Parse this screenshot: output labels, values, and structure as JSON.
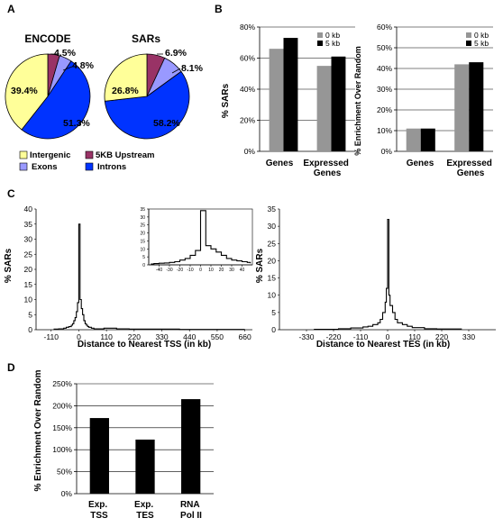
{
  "panel_labels": {
    "a": "A",
    "b": "B",
    "c": "C",
    "d": "D"
  },
  "colors": {
    "intergenic": "#ffff99",
    "upstream": "#993366",
    "exons": "#9999ff",
    "introns": "#0033ff",
    "kb0": "#969696",
    "kb5": "#000000"
  },
  "chart_data": [
    {
      "id": "encode-pie",
      "type": "pie",
      "title": "ENCODE",
      "slices": [
        {
          "name": "5KB Upstream",
          "value": 4.5,
          "label": "4.5%"
        },
        {
          "name": "Exons",
          "value": 4.8,
          "label": "4.8%"
        },
        {
          "name": "Introns",
          "value": 51.3,
          "label": "51.3%"
        },
        {
          "name": "Intergenic",
          "value": 39.4,
          "label": "39.4%"
        }
      ]
    },
    {
      "id": "sars-pie",
      "type": "pie",
      "title": "SARs",
      "slices": [
        {
          "name": "5KB Upstream",
          "value": 6.9,
          "label": "6.9%"
        },
        {
          "name": "Exons",
          "value": 8.1,
          "label": "8.1%"
        },
        {
          "name": "Introns",
          "value": 58.2,
          "label": "58.2%"
        },
        {
          "name": "Intergenic",
          "value": 26.8,
          "label": "26.8%"
        }
      ],
      "legend": [
        "Intergenic",
        "5KB Upstream",
        "Exons",
        "Introns"
      ]
    },
    {
      "id": "b-left",
      "type": "bar",
      "ylabel": "% SARs",
      "categories": [
        "Genes",
        "Expressed Genes"
      ],
      "series": [
        {
          "name": "0 kb",
          "values": [
            66,
            55
          ]
        },
        {
          "name": "5 kb",
          "values": [
            73,
            61
          ]
        }
      ],
      "ylim": [
        0,
        80
      ],
      "yticks": [
        "0%",
        "20%",
        "40%",
        "60%",
        "80%"
      ]
    },
    {
      "id": "b-right",
      "type": "bar",
      "ylabel": "% Enrichment Over Random",
      "categories": [
        "Genes",
        "Expressed Genes"
      ],
      "series": [
        {
          "name": "0 kb",
          "values": [
            11,
            42
          ]
        },
        {
          "name": "5 kb",
          "values": [
            11,
            43
          ]
        }
      ],
      "ylim": [
        0,
        60
      ],
      "yticks": [
        "0%",
        "10%",
        "20%",
        "30%",
        "40%",
        "50%",
        "60%"
      ]
    },
    {
      "id": "c-tss",
      "type": "line",
      "ylabel": "% SARs",
      "xlabel": "Distance to Nearest TSS (in kb)",
      "xlim": [
        -170,
        690
      ],
      "ylim": [
        0,
        40
      ],
      "xticks": [
        "-110",
        "0",
        "110",
        "220",
        "330",
        "440",
        "550",
        "660"
      ],
      "yticks": [
        "0",
        "5",
        "10",
        "15",
        "20",
        "25",
        "30",
        "35",
        "40"
      ],
      "x": [
        -100,
        -80,
        -60,
        -50,
        -40,
        -30,
        -25,
        -20,
        -15,
        -10,
        -5,
        0,
        5,
        10,
        15,
        20,
        25,
        30,
        35,
        40,
        50,
        60,
        80,
        100,
        150,
        200,
        300,
        400,
        500,
        600,
        660
      ],
      "y": [
        0.2,
        0.3,
        0.5,
        0.8,
        1,
        1.5,
        2,
        3,
        4,
        6,
        9,
        35,
        10,
        7,
        5,
        3,
        2,
        1.5,
        1,
        0.8,
        0.5,
        0.3,
        0.3,
        0.5,
        0.3,
        0.2,
        0.2,
        0.1,
        0.1,
        0.1,
        0.1
      ]
    },
    {
      "id": "c-tss-inset",
      "type": "line",
      "xlim": [
        -50,
        50
      ],
      "ylim": [
        0,
        35
      ],
      "xticks": [
        "-40",
        "-30",
        "-20",
        "-10",
        "0",
        "10",
        "20",
        "30",
        "40"
      ],
      "yticks": [
        "0",
        "5",
        "10",
        "15",
        "20",
        "25",
        "30",
        "35"
      ],
      "x": [
        -48,
        -45,
        -40,
        -35,
        -30,
        -25,
        -20,
        -15,
        -10,
        -5,
        0,
        5,
        10,
        15,
        20,
        25,
        30,
        35,
        40,
        45,
        48
      ],
      "y": [
        0.5,
        0.8,
        1,
        1.2,
        1.5,
        2,
        3,
        4,
        6,
        9,
        34,
        12,
        10,
        8,
        6,
        4,
        3,
        2.5,
        2,
        1.5,
        1
      ]
    },
    {
      "id": "c-tes",
      "type": "line",
      "ylabel": "% SARs",
      "xlabel": "Distance to Nearest TES (in kb)",
      "xlim": [
        -440,
        440
      ],
      "ylim": [
        0,
        35
      ],
      "xticks": [
        "-330",
        "-220",
        "-110",
        "0",
        "110",
        "220",
        "330"
      ],
      "yticks": [
        "0",
        "5",
        "10",
        "15",
        "20",
        "25",
        "30",
        "35"
      ],
      "x": [
        -300,
        -200,
        -150,
        -100,
        -80,
        -60,
        -40,
        -30,
        -20,
        -10,
        -5,
        0,
        5,
        10,
        20,
        30,
        40,
        60,
        80,
        100,
        150,
        200,
        300
      ],
      "y": [
        0.1,
        0.3,
        0.5,
        0.8,
        1,
        1.5,
        2,
        3,
        5,
        8,
        12,
        32,
        10,
        7,
        5,
        3,
        2,
        1.5,
        1,
        0.6,
        0.3,
        0.2,
        0.1
      ]
    },
    {
      "id": "d-bar",
      "type": "bar",
      "ylabel": "% Enrichment Over Random",
      "categories": [
        "Exp. TSS",
        "Exp. TES",
        "RNA Pol II"
      ],
      "values": [
        172,
        123,
        215
      ],
      "ylim": [
        0,
        250
      ],
      "yticks": [
        "0%",
        "50%",
        "100%",
        "150%",
        "200%",
        "250%"
      ]
    }
  ]
}
